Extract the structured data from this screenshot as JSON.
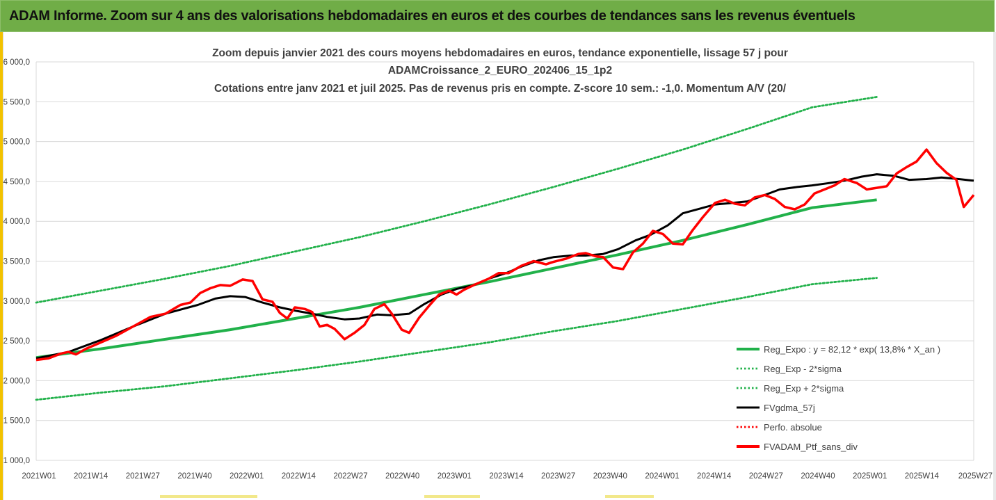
{
  "banner": {
    "title": "ADAM Informe. Zoom sur 4 ans des valorisations hebdomadaires en euros et des courbes de tendances sans les revenus éventuels"
  },
  "colors": {
    "banner_bg": "#70ad47",
    "trend": "#21b14a",
    "sigma": "#21b14a",
    "moving_avg": "#000000",
    "portfolio": "#ff0000",
    "perf_absolue": "#ff0000",
    "grid": "#d9d9d9"
  },
  "chart_data": {
    "type": "line",
    "title_lines": [
      "Zoom depuis janvier 2021 des cours moyens hebdomadaires  en euros, tendance exponentielle, lissage 57 j pour",
      "ADAMCroissance_2_EURO_202406_15_1p2",
      "Cotations entre janv 2021 et juil 2025. Pas de revenus pris en compte. Z-score 10 sem.: -1,0. Momentum A/V (20/"
    ],
    "y_ticks": [
      "1 000,0",
      "1 500,0",
      "2 000,0",
      "2 500,0",
      "3 000,0",
      "3 500,0",
      "4 000,0",
      "4 500,0",
      "5 000,0",
      "5 500,0",
      "6 000,0"
    ],
    "x_ticks": [
      "2021W01",
      "2021W14",
      "2021W27",
      "2021W40",
      "2022W01",
      "2022W14",
      "2022W27",
      "2022W40",
      "2023W01",
      "2023W14",
      "2023W27",
      "2023W40",
      "2024W01",
      "2024W14",
      "2024W27",
      "2024W40",
      "2025W01",
      "2025W14",
      "2025W27"
    ],
    "ylim": [
      1000,
      6000
    ],
    "grid": "horizontal",
    "legend_position": "bottom-right",
    "legend": [
      {
        "key": "trend",
        "label": "Reg_Expo : y = 82,12 * exp( 13,8% *  X_an )",
        "style": "solid-thick",
        "color": "#21b14a"
      },
      {
        "key": "lower",
        "label": "Reg_Exp - 2*sigma",
        "style": "dotted",
        "color": "#21b14a"
      },
      {
        "key": "upper",
        "label": "Reg_Exp + 2*sigma",
        "style": "dotted",
        "color": "#21b14a"
      },
      {
        "key": "ma",
        "label": "FVgdma_57j",
        "style": "solid",
        "color": "#000000"
      },
      {
        "key": "perf",
        "label": "Perfo. absolue",
        "style": "dotted",
        "color": "#ff0000"
      },
      {
        "key": "ptf",
        "label": "FVADAM_Ptf_sans_div",
        "style": "solid-thick",
        "color": "#ff0000"
      }
    ],
    "x_range": [
      0,
      234
    ],
    "series": {
      "trend": [
        [
          0,
          2290
        ],
        [
          26,
          2400
        ],
        [
          52,
          2520
        ],
        [
          78,
          2640
        ],
        [
          104,
          2780
        ],
        [
          130,
          2920
        ],
        [
          156,
          3080
        ],
        [
          182,
          3240
        ],
        [
          208,
          3410
        ],
        [
          234,
          3580
        ],
        [
          260,
          3760
        ],
        [
          286,
          3960
        ],
        [
          312,
          4170
        ],
        [
          338,
          4270
        ]
      ],
      "upper": [
        [
          0,
          2980
        ],
        [
          26,
          3130
        ],
        [
          52,
          3280
        ],
        [
          78,
          3440
        ],
        [
          104,
          3620
        ],
        [
          130,
          3800
        ],
        [
          156,
          4000
        ],
        [
          182,
          4210
        ],
        [
          208,
          4430
        ],
        [
          234,
          4660
        ],
        [
          260,
          4900
        ],
        [
          286,
          5160
        ],
        [
          312,
          5430
        ],
        [
          338,
          5560
        ]
      ],
      "lower": [
        [
          0,
          1760
        ],
        [
          26,
          1850
        ],
        [
          52,
          1930
        ],
        [
          78,
          2030
        ],
        [
          104,
          2130
        ],
        [
          130,
          2240
        ],
        [
          156,
          2360
        ],
        [
          182,
          2480
        ],
        [
          208,
          2620
        ],
        [
          234,
          2750
        ],
        [
          260,
          2900
        ],
        [
          286,
          3050
        ],
        [
          312,
          3210
        ],
        [
          338,
          3290
        ]
      ],
      "ma": [
        [
          0,
          2280
        ],
        [
          13,
          2360
        ],
        [
          26,
          2510
        ],
        [
          39,
          2680
        ],
        [
          52,
          2840
        ],
        [
          65,
          2950
        ],
        [
          72,
          3030
        ],
        [
          78,
          3060
        ],
        [
          84,
          3050
        ],
        [
          91,
          2980
        ],
        [
          98,
          2920
        ],
        [
          104,
          2880
        ],
        [
          111,
          2840
        ],
        [
          117,
          2800
        ],
        [
          124,
          2770
        ],
        [
          130,
          2780
        ],
        [
          137,
          2830
        ],
        [
          143,
          2820
        ],
        [
          150,
          2840
        ],
        [
          156,
          2960
        ],
        [
          163,
          3080
        ],
        [
          169,
          3150
        ],
        [
          176,
          3200
        ],
        [
          182,
          3280
        ],
        [
          189,
          3350
        ],
        [
          195,
          3430
        ],
        [
          202,
          3510
        ],
        [
          208,
          3550
        ],
        [
          215,
          3570
        ],
        [
          221,
          3570
        ],
        [
          228,
          3590
        ],
        [
          234,
          3650
        ],
        [
          241,
          3760
        ],
        [
          247,
          3830
        ],
        [
          254,
          3950
        ],
        [
          260,
          4100
        ],
        [
          267,
          4160
        ],
        [
          273,
          4210
        ],
        [
          280,
          4230
        ],
        [
          286,
          4250
        ],
        [
          293,
          4330
        ],
        [
          299,
          4400
        ],
        [
          306,
          4430
        ],
        [
          312,
          4450
        ],
        [
          319,
          4480
        ],
        [
          325,
          4510
        ],
        [
          332,
          4560
        ],
        [
          338,
          4590
        ],
        [
          345,
          4570
        ],
        [
          351,
          4520
        ],
        [
          358,
          4530
        ],
        [
          364,
          4550
        ],
        [
          371,
          4530
        ],
        [
          377,
          4510
        ]
      ],
      "ptf": [
        [
          0,
          2260
        ],
        [
          5,
          2280
        ],
        [
          10,
          2340
        ],
        [
          13,
          2360
        ],
        [
          16,
          2330
        ],
        [
          20,
          2400
        ],
        [
          26,
          2480
        ],
        [
          32,
          2560
        ],
        [
          39,
          2680
        ],
        [
          46,
          2800
        ],
        [
          52,
          2840
        ],
        [
          58,
          2950
        ],
        [
          62,
          2980
        ],
        [
          66,
          3100
        ],
        [
          70,
          3160
        ],
        [
          74,
          3200
        ],
        [
          78,
          3190
        ],
        [
          83,
          3270
        ],
        [
          87,
          3250
        ],
        [
          91,
          3020
        ],
        [
          95,
          2990
        ],
        [
          98,
          2850
        ],
        [
          101,
          2780
        ],
        [
          104,
          2920
        ],
        [
          108,
          2900
        ],
        [
          111,
          2860
        ],
        [
          114,
          2680
        ],
        [
          117,
          2700
        ],
        [
          120,
          2650
        ],
        [
          124,
          2520
        ],
        [
          128,
          2600
        ],
        [
          132,
          2700
        ],
        [
          136,
          2900
        ],
        [
          140,
          2960
        ],
        [
          143,
          2840
        ],
        [
          147,
          2640
        ],
        [
          150,
          2600
        ],
        [
          154,
          2790
        ],
        [
          158,
          2940
        ],
        [
          162,
          3080
        ],
        [
          166,
          3130
        ],
        [
          169,
          3080
        ],
        [
          172,
          3140
        ],
        [
          176,
          3200
        ],
        [
          182,
          3280
        ],
        [
          186,
          3350
        ],
        [
          190,
          3350
        ],
        [
          195,
          3440
        ],
        [
          200,
          3500
        ],
        [
          205,
          3460
        ],
        [
          208,
          3490
        ],
        [
          213,
          3530
        ],
        [
          218,
          3590
        ],
        [
          221,
          3600
        ],
        [
          225,
          3560
        ],
        [
          228,
          3550
        ],
        [
          232,
          3420
        ],
        [
          236,
          3400
        ],
        [
          240,
          3610
        ],
        [
          244,
          3720
        ],
        [
          248,
          3880
        ],
        [
          252,
          3840
        ],
        [
          256,
          3720
        ],
        [
          260,
          3710
        ],
        [
          264,
          3890
        ],
        [
          268,
          4050
        ],
        [
          273,
          4230
        ],
        [
          277,
          4270
        ],
        [
          281,
          4220
        ],
        [
          285,
          4200
        ],
        [
          289,
          4300
        ],
        [
          293,
          4330
        ],
        [
          297,
          4280
        ],
        [
          301,
          4180
        ],
        [
          305,
          4150
        ],
        [
          309,
          4210
        ],
        [
          313,
          4350
        ],
        [
          317,
          4400
        ],
        [
          321,
          4450
        ],
        [
          325,
          4530
        ],
        [
          330,
          4480
        ],
        [
          334,
          4400
        ],
        [
          338,
          4420
        ],
        [
          342,
          4440
        ],
        [
          346,
          4600
        ],
        [
          350,
          4680
        ],
        [
          354,
          4750
        ],
        [
          358,
          4900
        ],
        [
          362,
          4730
        ],
        [
          366,
          4610
        ],
        [
          370,
          4520
        ],
        [
          373,
          4180
        ],
        [
          377,
          4330
        ]
      ]
    }
  }
}
